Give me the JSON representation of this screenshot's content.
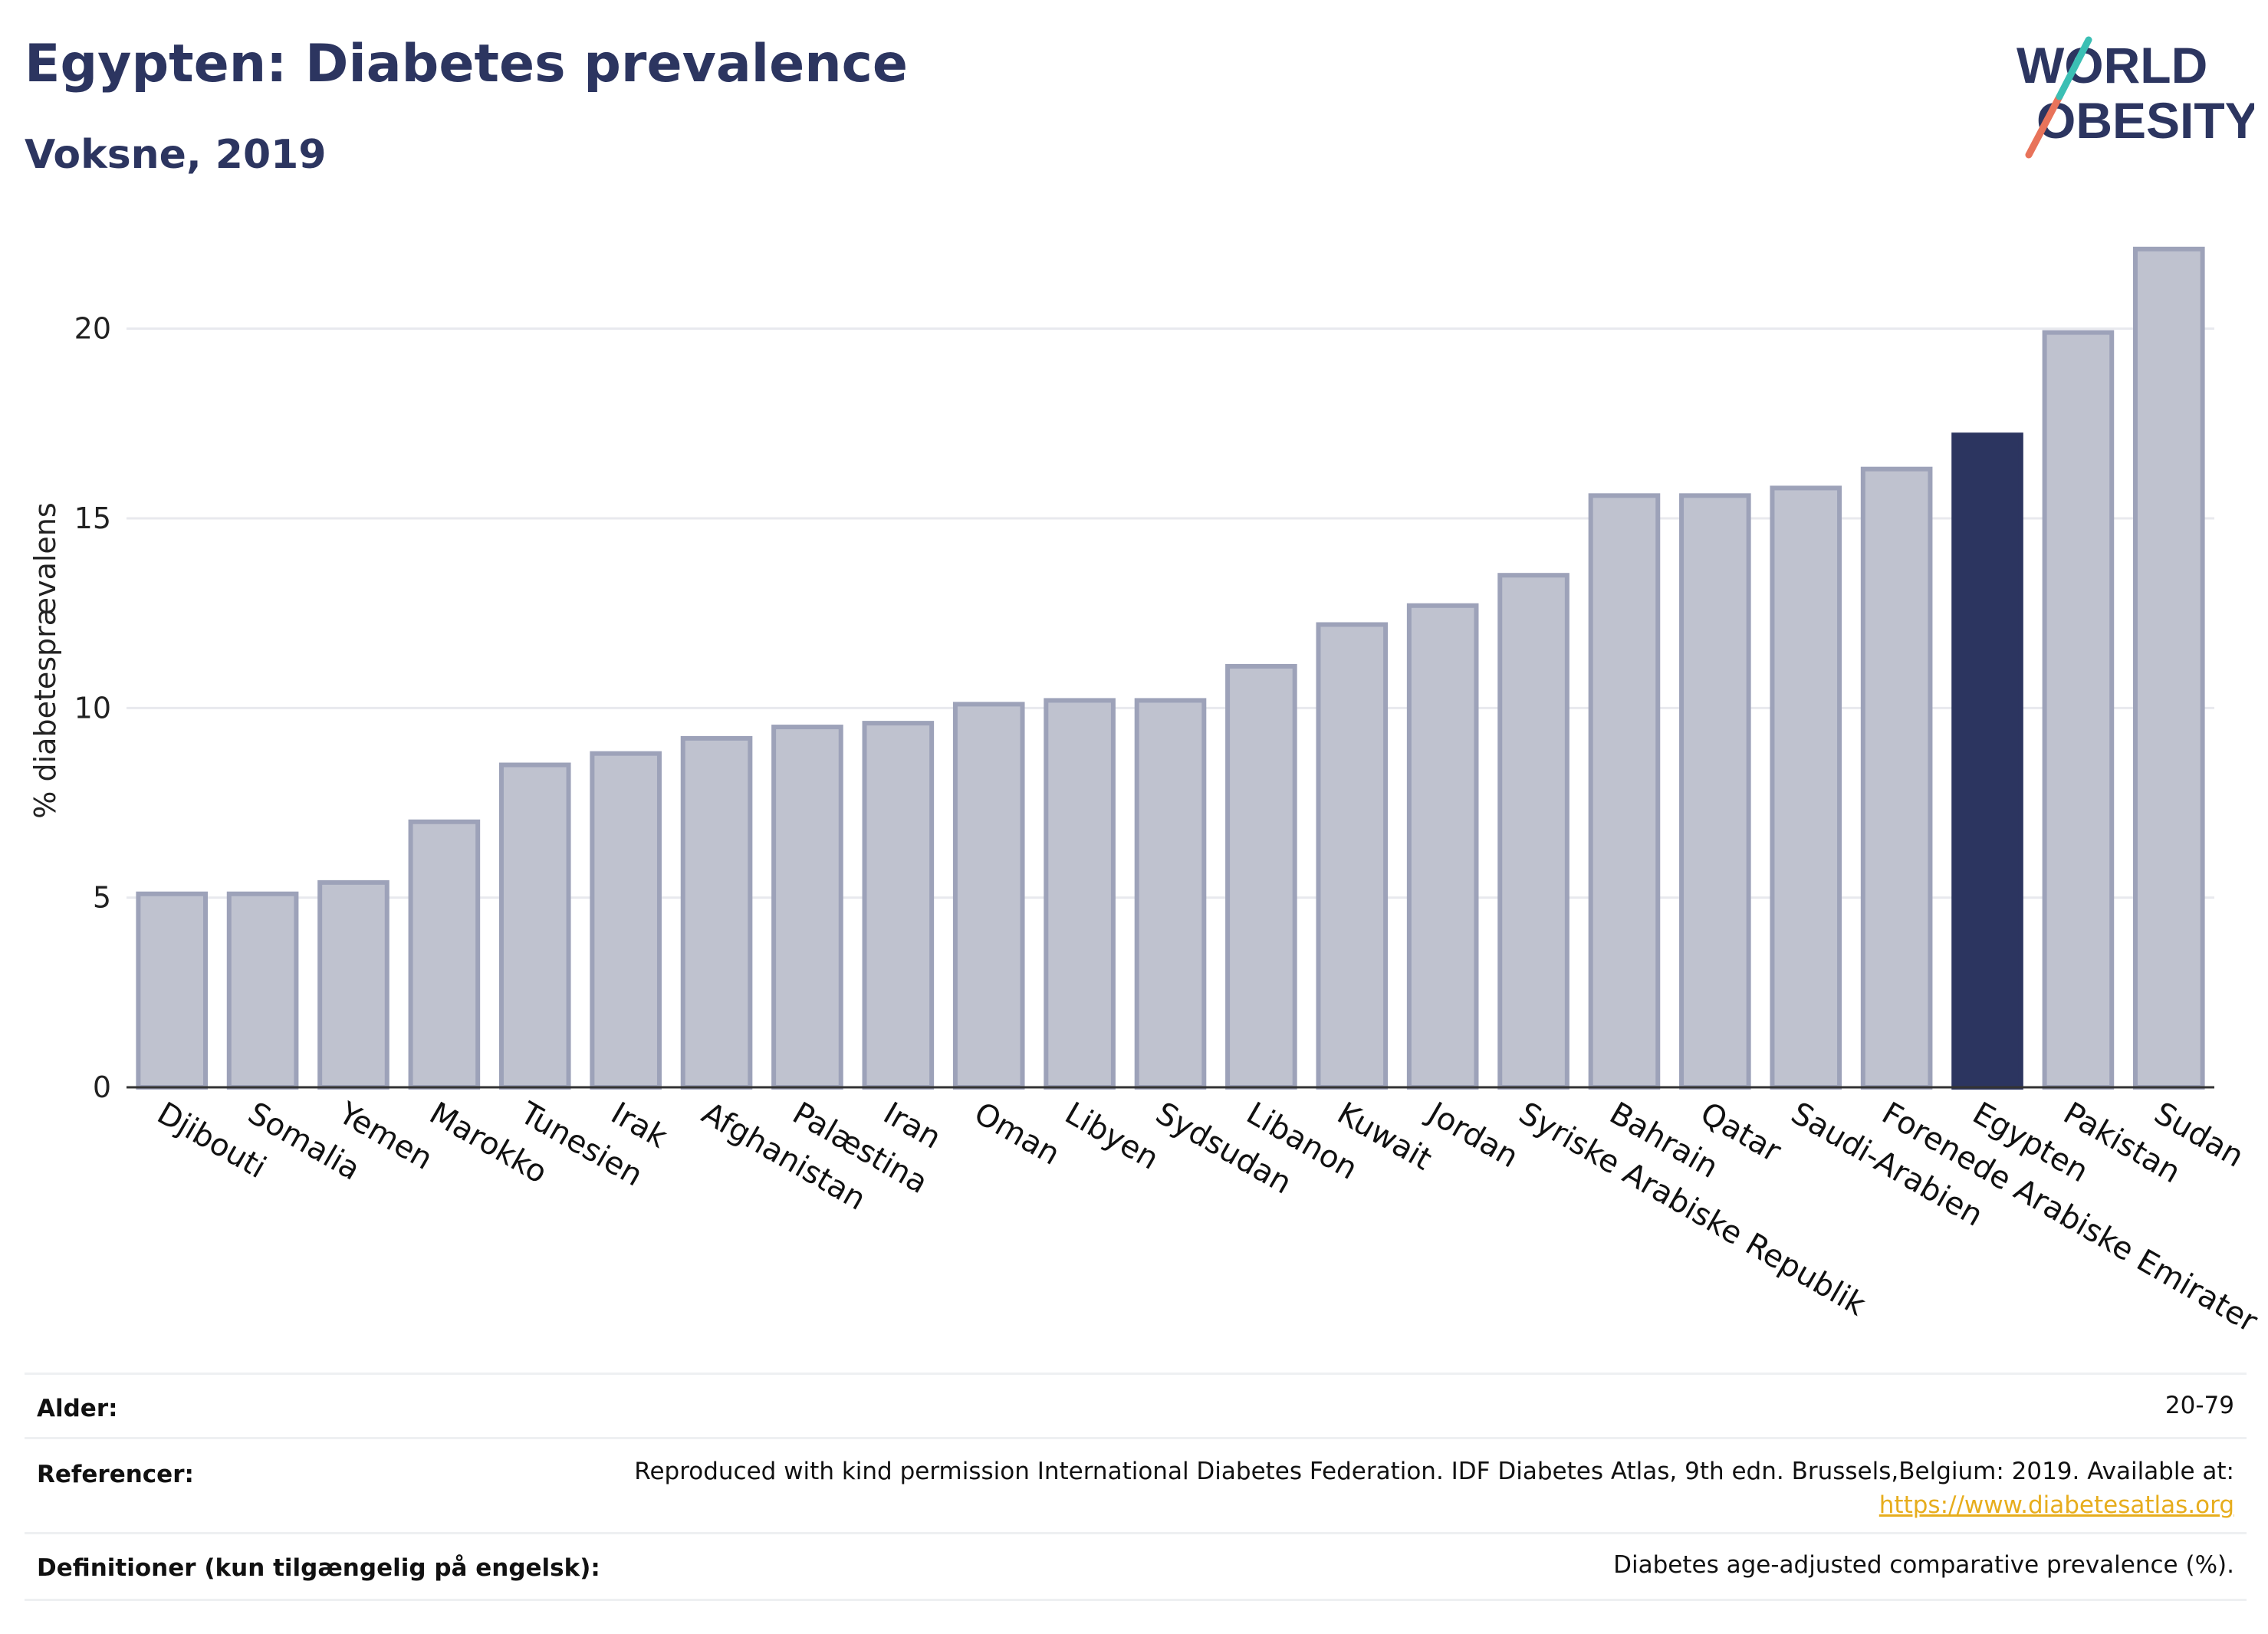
{
  "header": {
    "title": "Egypten: Diabetes prevalence",
    "subtitle": "Voksne, 2019"
  },
  "logo": {
    "line1": "WORLD",
    "line2": "OBESITY"
  },
  "chart_data": {
    "type": "bar",
    "ylabel": "% diabetesprævalens",
    "xlabel": "",
    "ylim": [
      0,
      22.5
    ],
    "yticks": [
      0,
      5,
      10,
      15,
      20
    ],
    "grid": true,
    "highlight": "Egypten",
    "colors": {
      "bar": "#bfc2cf",
      "bar_stroke": "#9da2b9",
      "highlight": "#2c3560"
    },
    "categories": [
      "Djibouti",
      "Somalia",
      "Yemen",
      "Marokko",
      "Tunesien",
      "Irak",
      "Afghanistan",
      "Palæstina",
      "Iran",
      "Oman",
      "Libyen",
      "Sydsudan",
      "Libanon",
      "Kuwait",
      "Jordan",
      "Syriske Arabiske Republik",
      "Bahrain",
      "Qatar",
      "Saudi-Arabien",
      "Forenede Arabiske Emirater",
      "Egypten",
      "Pakistan",
      "Sudan"
    ],
    "values": [
      5.1,
      5.1,
      5.4,
      7.0,
      8.5,
      8.8,
      9.2,
      9.5,
      9.6,
      10.1,
      10.2,
      10.2,
      11.1,
      12.2,
      12.7,
      13.5,
      15.6,
      15.6,
      15.8,
      16.3,
      17.2,
      19.9,
      22.1
    ]
  },
  "info": {
    "age_label": "Alder:",
    "age_value": "20-79",
    "ref_label": "Referencer:",
    "ref_text": "Reproduced with kind permission International Diabetes Federation. IDF Diabetes Atlas, 9th edn. Brussels,Belgium: 2019. Available at:",
    "ref_link": "https://www.diabetesatlas.org",
    "def_label": "Definitioner (kun tilgængelig på engelsk):",
    "def_value": "Diabetes age-adjusted comparative prevalence (%)."
  }
}
